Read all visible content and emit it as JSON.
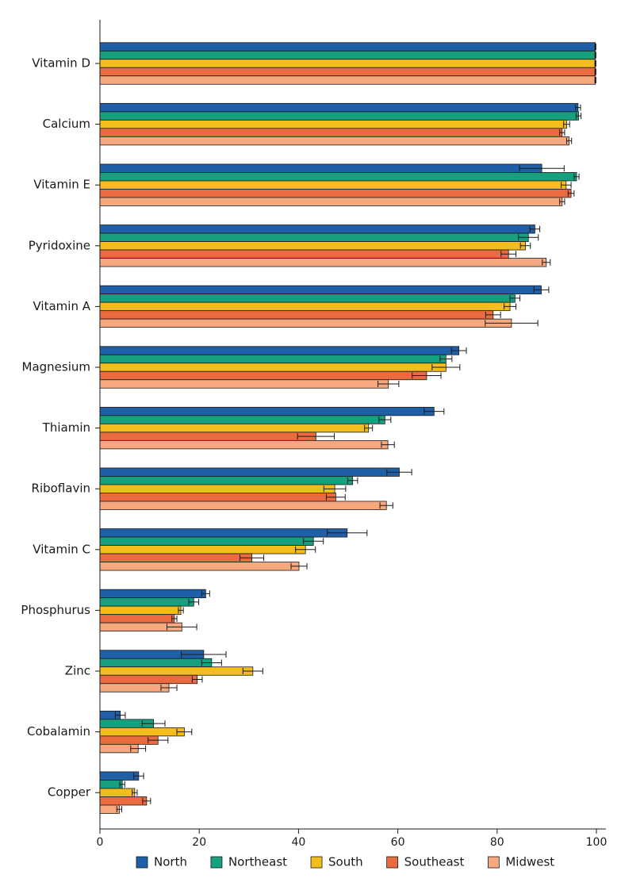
{
  "chart_data": {
    "type": "bar",
    "orientation": "horizontal",
    "title": "",
    "xlabel": "",
    "ylabel": "",
    "xlim": [
      0,
      100
    ],
    "xticks": [
      0,
      20,
      40,
      60,
      80,
      100
    ],
    "grid": false,
    "legend_position": "bottom",
    "categories": [
      "Vitamin D",
      "Calcium",
      "Vitamin E",
      "Pyridoxine",
      "Vitamin A",
      "Magnesium",
      "Thiamin",
      "Riboflavin",
      "Vitamin C",
      "Phosphurus",
      "Zinc",
      "Cobalamin",
      "Copper"
    ],
    "series": [
      {
        "name": "North",
        "color": "#1f5fa8",
        "values": [
          99.8,
          96.3,
          89.0,
          87.6,
          88.9,
          72.3,
          67.3,
          60.3,
          49.8,
          21.3,
          20.9,
          4.1,
          7.8
        ],
        "errors": [
          0.1,
          0.5,
          4.5,
          1.0,
          1.5,
          1.5,
          2.0,
          2.5,
          4.0,
          0.8,
          4.5,
          1.0,
          1.0
        ]
      },
      {
        "name": "Northeast",
        "color": "#17a07f",
        "values": [
          99.8,
          96.4,
          96.0,
          86.3,
          83.6,
          69.7,
          57.4,
          50.9,
          43.0,
          18.9,
          22.5,
          10.8,
          4.5
        ],
        "errors": [
          0.1,
          0.5,
          0.5,
          2.0,
          1.0,
          1.2,
          1.2,
          1.0,
          2.0,
          1.0,
          2.0,
          2.3,
          0.5
        ]
      },
      {
        "name": "South",
        "color": "#f2bd1d",
        "values": [
          99.8,
          94.0,
          93.9,
          85.7,
          82.6,
          69.7,
          54.1,
          47.3,
          41.4,
          16.3,
          30.8,
          17.0,
          7.0
        ],
        "errors": [
          0.1,
          0.6,
          1.0,
          1.0,
          1.2,
          2.8,
          0.8,
          2.2,
          2.0,
          0.5,
          2.0,
          1.5,
          0.5
        ]
      },
      {
        "name": "Southeast",
        "color": "#ea6b3f",
        "values": [
          99.8,
          93.1,
          94.9,
          82.3,
          79.2,
          65.8,
          43.5,
          47.5,
          30.6,
          15.0,
          19.6,
          11.7,
          9.4
        ],
        "errors": [
          0.1,
          0.5,
          0.6,
          1.5,
          1.5,
          2.9,
          3.7,
          1.9,
          2.4,
          0.5,
          1.0,
          2.0,
          0.8
        ]
      },
      {
        "name": "Midwest",
        "color": "#f6a97f",
        "values": [
          99.8,
          94.5,
          93.1,
          89.9,
          82.9,
          58.1,
          58.0,
          57.7,
          40.1,
          16.5,
          13.9,
          7.7,
          3.9
        ],
        "errors": [
          0.1,
          0.5,
          0.5,
          0.8,
          5.3,
          2.1,
          1.3,
          1.3,
          1.6,
          3.0,
          1.6,
          1.5,
          0.5
        ]
      }
    ]
  }
}
